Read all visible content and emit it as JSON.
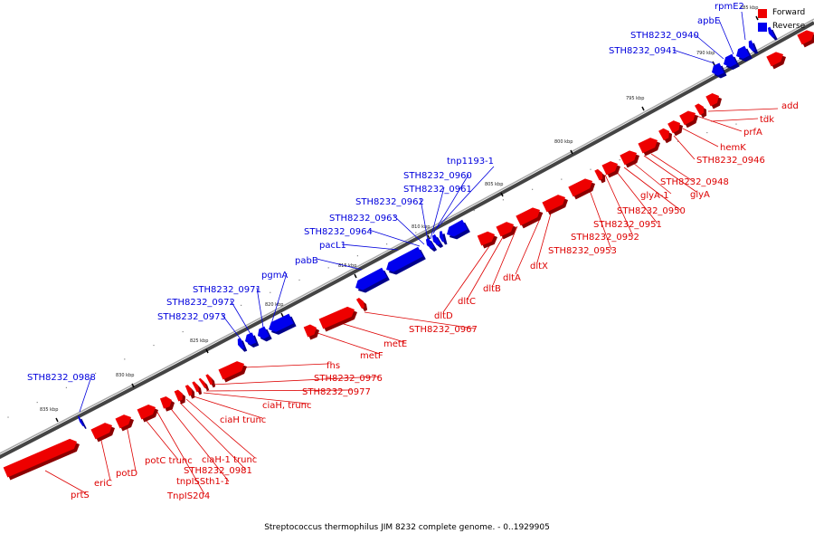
{
  "caption": "Streptococcus thermophilus JIM 8232 complete genome. - 0..1929905",
  "legend": {
    "forward_label": "Forward",
    "reverse_label": "Reverse",
    "forward_color": "#ee0000",
    "reverse_color": "#0000ee"
  },
  "scale_ticks": [
    "785 kbp",
    "790 kbp",
    "795 kbp",
    "800 kbp",
    "805 kbp",
    "810 kbp",
    "815 kbp",
    "820 kbp",
    "825 kbp",
    "830 kbp",
    "835 kbp"
  ],
  "forward_genes": [
    "add",
    "tdk",
    "prfA",
    "hemK",
    "STH8232_0946",
    "STH8232_0948",
    "glyA",
    "glyA-1",
    "STH8232_0950",
    "STH8232_0951",
    "STH8232_0952",
    "STH8232_0953",
    "dltX",
    "dltA",
    "dltB",
    "dltC",
    "dltD",
    "STH8232_0967",
    "metE",
    "metF",
    "fhs",
    "STH8232_0976",
    "STH8232_0977",
    "ciaH, trunc",
    "ciaH trunc",
    "ciaH-1 trunc",
    "STH8232_0981",
    "tnpISSth1-1",
    "TnpIS204",
    "potC trunc",
    "potD",
    "eriC",
    "prtS"
  ],
  "reverse_genes": [
    "rpmE2",
    "apbE",
    "STH8232_0940",
    "STH8232_0941",
    "tnp1193-1",
    "STH8232_0960",
    "STH8232_0961",
    "STH8232_0962",
    "STH8232_0963",
    "STH8232_0964",
    "pacL1",
    "pabB",
    "pgmA",
    "STH8232_0971",
    "STH8232_0972",
    "STH8232_0973",
    "STH8232_0988"
  ]
}
